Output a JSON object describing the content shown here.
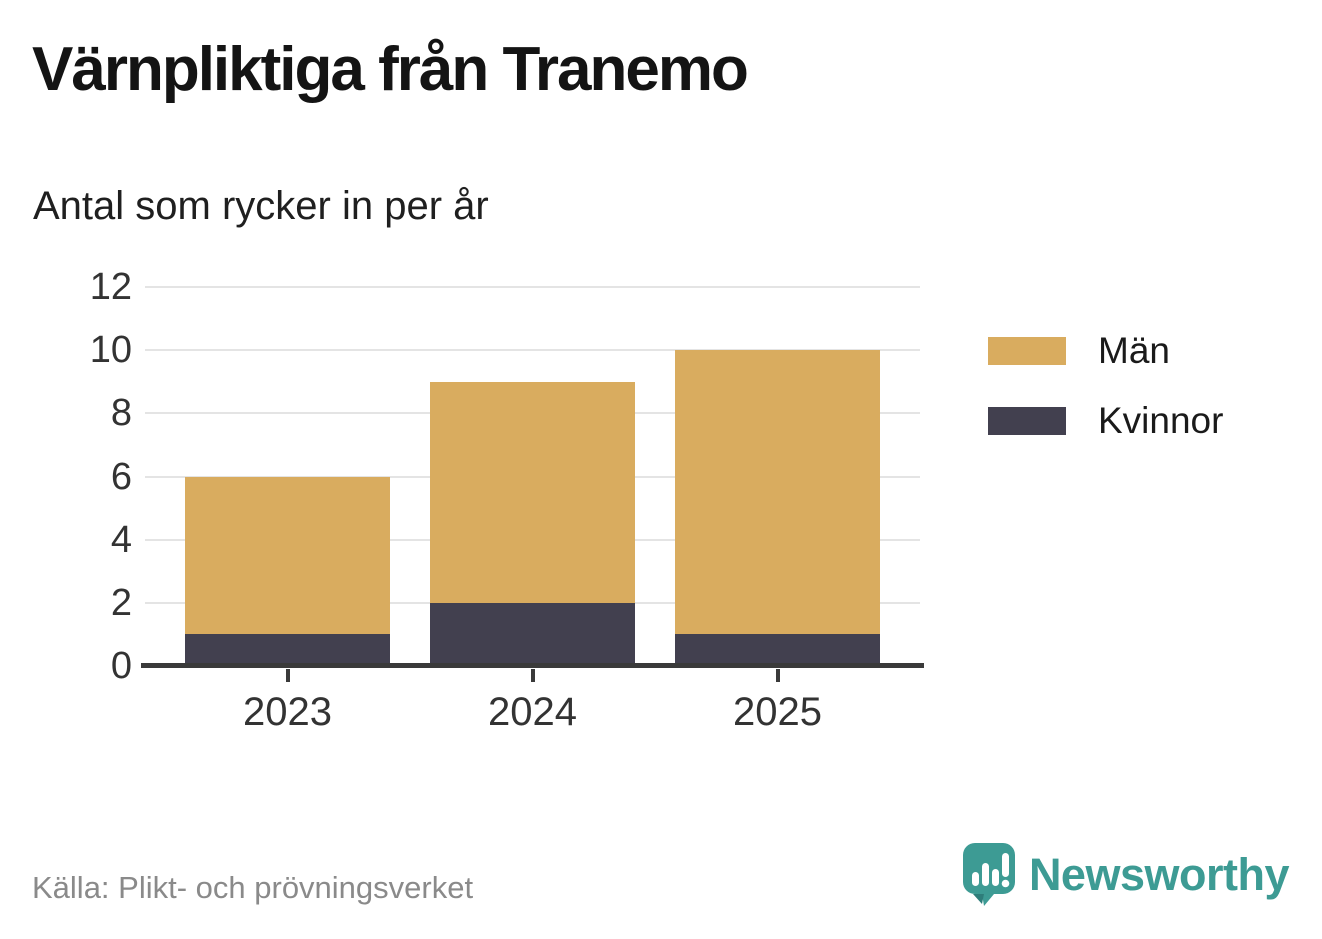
{
  "title": "Värnpliktiga från Tranemo",
  "subtitle": "Antal som rycker in per år",
  "source": "Källa: Plikt- och prövningsverket",
  "brand": {
    "name": "Newsworthy",
    "color": "#3d9b94",
    "icon": "newsworthy-speech-bubble-chart-icon"
  },
  "colors": {
    "men": "#d9ac5f",
    "women": "#42404f",
    "gridline": "#e4e4e4",
    "axis": "#3a3a3a",
    "tick_text": "#333333",
    "source_text": "#8a8a8a",
    "brand_teal": "#3d9b94"
  },
  "legend": {
    "items": [
      {
        "label": "Män",
        "color": "#d9ac5f"
      },
      {
        "label": "Kvinnor",
        "color": "#42404f"
      }
    ]
  },
  "chart_data": {
    "type": "bar",
    "stacked": true,
    "title": "Värnpliktiga från Tranemo",
    "subtitle": "Antal som rycker in per år",
    "categories": [
      "2023",
      "2024",
      "2025"
    ],
    "series": [
      {
        "name": "Kvinnor",
        "values": [
          1,
          2,
          1
        ],
        "color": "#42404f",
        "stack_order": "bottom"
      },
      {
        "name": "Män",
        "values": [
          5,
          7,
          9
        ],
        "color": "#d9ac5f",
        "stack_order": "top"
      }
    ],
    "totals": [
      6,
      9,
      10
    ],
    "xlabel": "",
    "ylabel": "",
    "ylim": [
      0,
      12
    ],
    "yticks": [
      0,
      2,
      4,
      6,
      8,
      10,
      12
    ],
    "grid": true,
    "legend_position": "top-right"
  }
}
